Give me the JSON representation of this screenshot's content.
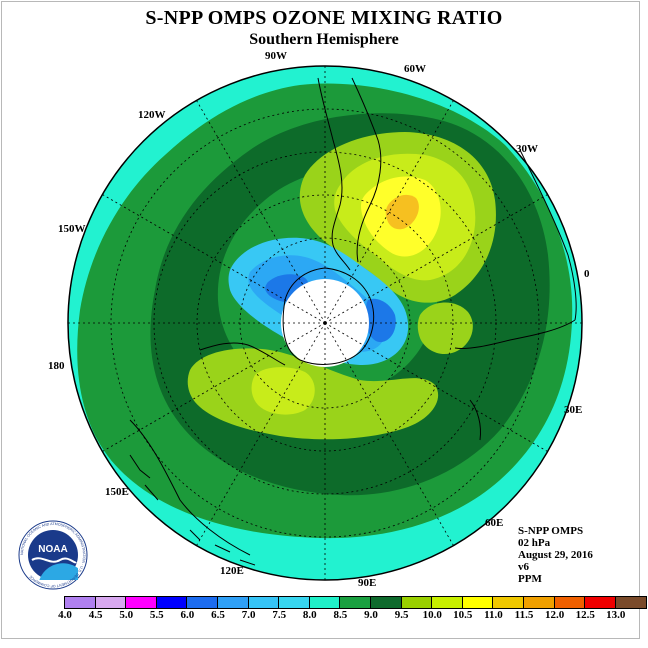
{
  "title": "S-NPP OMPS OZONE MIXING RATIO",
  "subtitle": "Southern Hemisphere",
  "longitude_labels": [
    "90W",
    "60W",
    "30W",
    "0",
    "30E",
    "60E",
    "90E",
    "120E",
    "150E",
    "180",
    "150W",
    "120W"
  ],
  "info": {
    "product": "S-NPP OMPS",
    "level": "02 hPa",
    "date": "August 29, 2016",
    "version": "v6",
    "units": "PPM"
  },
  "logo": {
    "name": "noaa-logo",
    "text": "NOAA",
    "ring_text": "NATIONAL OCEANIC AND ATMOSPHERIC ADMINISTRATION · U.S. DEPARTMENT OF COMMERCE"
  },
  "colorbar": {
    "labels": [
      "4.0",
      "4.5",
      "5.0",
      "5.5",
      "6.0",
      "6.5",
      "7.0",
      "7.5",
      "8.0",
      "8.5",
      "9.0",
      "9.5",
      "10.0",
      "10.5",
      "11.0",
      "11.5",
      "12.0",
      "12.5",
      "13.0"
    ],
    "colors": [
      "#b080f0",
      "#d8a8f0",
      "#ff00ff",
      "#0000ff",
      "#1c6cf0",
      "#2fa0f6",
      "#36c4f6",
      "#38d6f0",
      "#20f0c8",
      "#1aa040",
      "#0e6a2c",
      "#9ad000",
      "#c8f000",
      "#ffff00",
      "#f0c800",
      "#f0a000",
      "#f06000",
      "#f00000",
      "#7a4a2a"
    ]
  },
  "colors": {
    "cyan": "#22f2d0",
    "green": "#1c9a3a",
    "dark_green": "#0d6b2a",
    "light_green": "#9ad31a",
    "yellow_green": "#c8ec1a",
    "yellow": "#ffff2a",
    "orange": "#f6c020",
    "blue": "#38c8f4",
    "mid_blue": "#2ca8f4",
    "deep_blue": "#1c78e8"
  }
}
